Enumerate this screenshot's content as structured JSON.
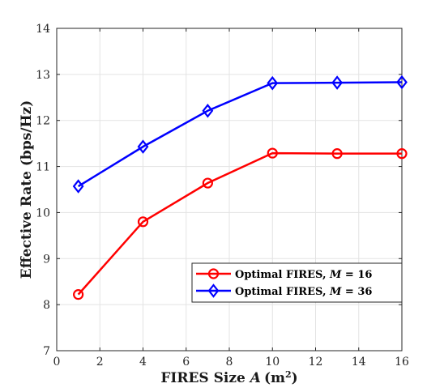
{
  "chart_data": {
    "type": "line",
    "xlabel_prefix": "FIRES Size ",
    "xlabel_var": "A",
    "xlabel_unit": "(m",
    "xlabel_sup": "2",
    "xlabel_close": ")",
    "ylabel": "Effective Rate (bps/Hz)",
    "xlim": [
      0,
      16
    ],
    "ylim": [
      7,
      14
    ],
    "xticks": [
      0,
      2,
      4,
      6,
      8,
      10,
      12,
      14,
      16
    ],
    "yticks": [
      7,
      8,
      9,
      10,
      11,
      12,
      13,
      14
    ],
    "grid": true,
    "legend_position": "lower-right",
    "x": [
      1,
      4,
      7,
      10,
      13,
      16
    ],
    "series": [
      {
        "name_prefix": "Optimal FIRES, ",
        "name_var": "M",
        "name_suffix": " = 16",
        "values": [
          8.22,
          9.8,
          10.64,
          11.29,
          11.28,
          11.28
        ],
        "color": "#ff0000",
        "marker": "circle"
      },
      {
        "name_prefix": "Optimal FIRES, ",
        "name_var": "M",
        "name_suffix": " = 36",
        "values": [
          10.57,
          11.43,
          12.21,
          12.81,
          12.82,
          12.83
        ],
        "color": "#0000ff",
        "marker": "diamond"
      }
    ]
  }
}
